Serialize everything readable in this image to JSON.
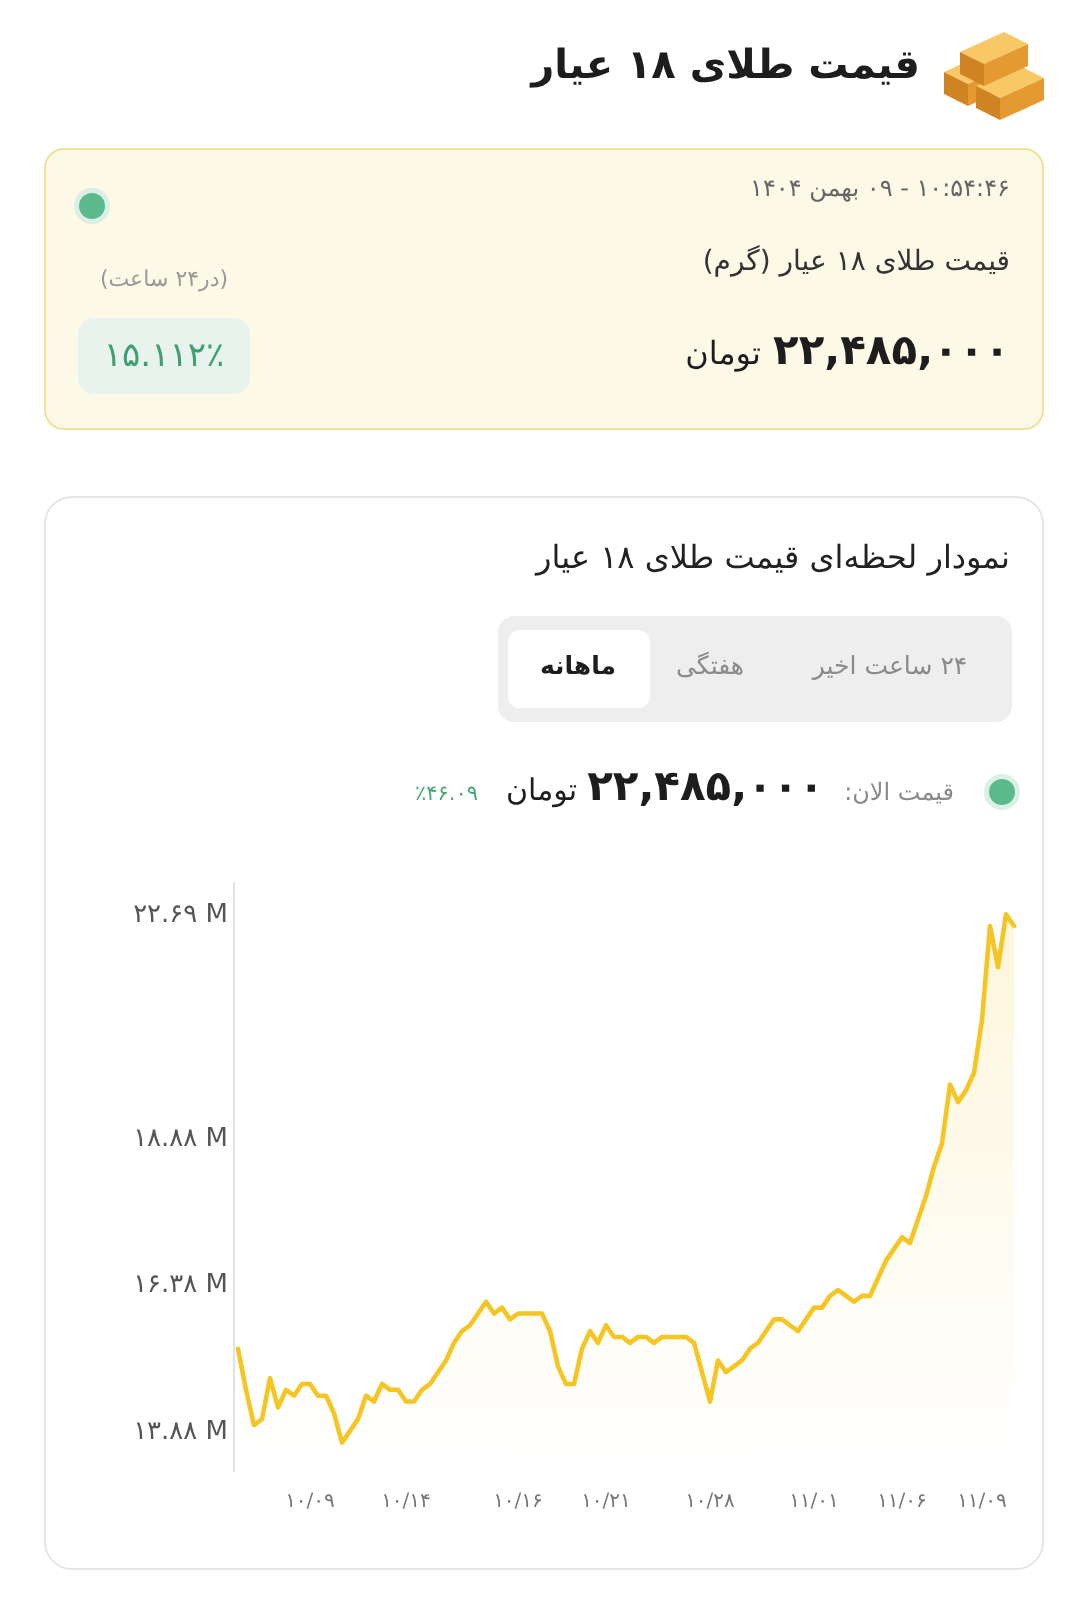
{
  "chart_data": [
    {
      "type": "other",
      "title": "قیمت طلای ۱۸ عیار",
      "annotations": [
        "۱۰:۵۴:۴۶ - ۰۹ بهمن ۱۴۰۴",
        "قیمت طلای ۱۸ عیار (گرم)",
        "۲۲,۴۸۵,۰۰۰ تومان",
        "(در۲۴ ساعت)",
        "۱۵.۱۱۲٪"
      ]
    },
    {
      "type": "area",
      "title": "نمودار لحظه‌ای قیمت طلای ۱۸ عیار",
      "annotations": [
        "۲۴ ساعت اخیر",
        "هفتگی",
        "ماهانه",
        "قیمت الان:",
        "۲۲,۴۸۵,۰۰۰ تومان",
        "٪۴۶.۰۹"
      ],
      "categories": [
        null,
        null,
        null,
        null,
        null,
        null,
        null,
        null,
        null,
        "۱۰/۰۹",
        null,
        null,
        null,
        null,
        null,
        null,
        null,
        null,
        null,
        null,
        null,
        "۱۰/۱۴",
        null,
        null,
        null,
        null,
        null,
        null,
        null,
        null,
        null,
        null,
        null,
        null,
        null,
        "۱۰/۱۶",
        null,
        null,
        null,
        null,
        null,
        null,
        null,
        null,
        null,
        null,
        "۱۰/۲۱",
        null,
        null,
        null,
        null,
        null,
        null,
        null,
        null,
        null,
        null,
        null,
        null,
        "۱۰/۲۸",
        null,
        null,
        null,
        null,
        null,
        null,
        null,
        null,
        null,
        null,
        null,
        null,
        "۱۱/۰۱",
        null,
        null,
        null,
        null,
        null,
        null,
        null,
        null,
        null,
        null,
        "۱۱/۰۶",
        null,
        null,
        null,
        null,
        null,
        null,
        null,
        null,
        null,
        "۱۱/۰۹",
        null,
        null,
        null,
        null
      ],
      "values": [
        15.3,
        14.6,
        14.0,
        14.1,
        14.8,
        14.3,
        14.6,
        14.5,
        14.7,
        14.7,
        14.5,
        14.5,
        14.2,
        13.7,
        13.9,
        14.1,
        14.5,
        14.4,
        14.7,
        14.6,
        14.6,
        14.4,
        14.4,
        14.6,
        14.7,
        14.9,
        15.1,
        15.4,
        15.6,
        15.7,
        15.9,
        16.1,
        15.9,
        16.0,
        15.8,
        15.9,
        15.9,
        15.9,
        15.9,
        15.6,
        15.0,
        14.7,
        14.7,
        15.3,
        15.6,
        15.4,
        15.7,
        15.5,
        15.5,
        15.4,
        15.5,
        15.5,
        15.4,
        15.5,
        15.5,
        15.5,
        15.5,
        15.4,
        14.9,
        14.4,
        15.1,
        14.9,
        15.0,
        15.1,
        15.3,
        15.4,
        15.6,
        15.8,
        15.8,
        15.7,
        15.6,
        15.8,
        16.0,
        16.0,
        16.2,
        16.3,
        16.2,
        16.1,
        16.2,
        16.2,
        16.5,
        16.8,
        17.0,
        17.2,
        17.1,
        17.5,
        17.9,
        18.4,
        18.8,
        19.8,
        19.5,
        19.7,
        20.0,
        20.9,
        22.5,
        21.8,
        22.7,
        22.5
      ],
      "color": "#f5c623",
      "ylim": [
        13.2,
        23.25
      ],
      "yticks": [
        {
          "value": 13.88,
          "label": "۱۳.۸۸ M"
        },
        {
          "value": 16.38,
          "label": "۱۶.۳۸ M"
        },
        {
          "value": 18.88,
          "label": "۱۸.۸۸ M"
        },
        {
          "value": 22.69,
          "label": "۲۲.۶۹ M"
        }
      ]
    }
  ]
}
